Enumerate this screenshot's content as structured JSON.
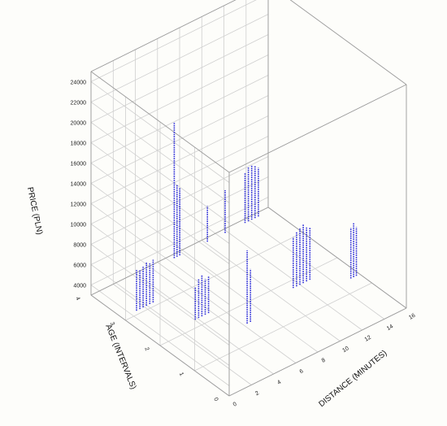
{
  "chart_data": {
    "type": "scatter",
    "style": "3d-spike",
    "title": "",
    "xlabel": "DISTANCE (MINUTES)",
    "ylabel": "AGE (INTERVALS)",
    "zlabel": "PRICE (PLN)",
    "xlim": [
      0,
      16
    ],
    "ylim": [
      0,
      4
    ],
    "zlim": [
      3000,
      25000
    ],
    "x_ticks": [
      "0",
      "2",
      "4",
      "6",
      "8",
      "10",
      "12",
      "14",
      "16"
    ],
    "y_ticks": [
      "0",
      "1",
      "2",
      "3",
      "4"
    ],
    "z_ticks": [
      "4000",
      "6000",
      "8000",
      "10000",
      "12000",
      "14000",
      "16000",
      "18000",
      "20000",
      "22000",
      "24000"
    ],
    "point_color": "#2a2ad8",
    "grid": true,
    "points": [
      {
        "x": 1.3,
        "y": 3.1,
        "z": 7000
      },
      {
        "x": 1.6,
        "y": 3.1,
        "z": 6800
      },
      {
        "x": 1.9,
        "y": 3.1,
        "z": 7000
      },
      {
        "x": 2.2,
        "y": 3.1,
        "z": 7300
      },
      {
        "x": 2.5,
        "y": 3.1,
        "z": 7000
      },
      {
        "x": 2.8,
        "y": 3.1,
        "z": 7200
      },
      {
        "x": 3.8,
        "y": 2.2,
        "z": 6200
      },
      {
        "x": 4.1,
        "y": 2.2,
        "z": 6800
      },
      {
        "x": 4.4,
        "y": 2.2,
        "z": 7100
      },
      {
        "x": 4.7,
        "y": 2.2,
        "z": 6500
      },
      {
        "x": 5.0,
        "y": 2.2,
        "z": 6600
      },
      {
        "x": 6.3,
        "y": 1.5,
        "z": 10200
      },
      {
        "x": 6.6,
        "y": 1.5,
        "z": 8200
      },
      {
        "x": 7.2,
        "y": 3.9,
        "z": 16400
      },
      {
        "x": 7.45,
        "y": 3.9,
        "z": 10100
      },
      {
        "x": 7.7,
        "y": 3.9,
        "z": 9600
      },
      {
        "x": 10.2,
        "y": 3.9,
        "z": 6500
      },
      {
        "x": 11.8,
        "y": 3.9,
        "z": 7200
      },
      {
        "x": 13.6,
        "y": 3.9,
        "z": 7900
      },
      {
        "x": 13.9,
        "y": 3.9,
        "z": 8300
      },
      {
        "x": 14.2,
        "y": 3.9,
        "z": 8400
      },
      {
        "x": 14.5,
        "y": 3.9,
        "z": 8100
      },
      {
        "x": 14.8,
        "y": 3.9,
        "z": 7800
      },
      {
        "x": 11.4,
        "y": 1.8,
        "z": 8000
      },
      {
        "x": 11.7,
        "y": 1.8,
        "z": 8400
      },
      {
        "x": 12.0,
        "y": 1.8,
        "z": 8600
      },
      {
        "x": 12.3,
        "y": 1.8,
        "z": 8800
      },
      {
        "x": 12.6,
        "y": 1.8,
        "z": 8300
      },
      {
        "x": 12.9,
        "y": 1.8,
        "z": 8100
      },
      {
        "x": 15.2,
        "y": 1.35,
        "z": 8000
      },
      {
        "x": 15.45,
        "y": 1.35,
        "z": 8300
      },
      {
        "x": 15.7,
        "y": 1.35,
        "z": 7800
      }
    ]
  }
}
